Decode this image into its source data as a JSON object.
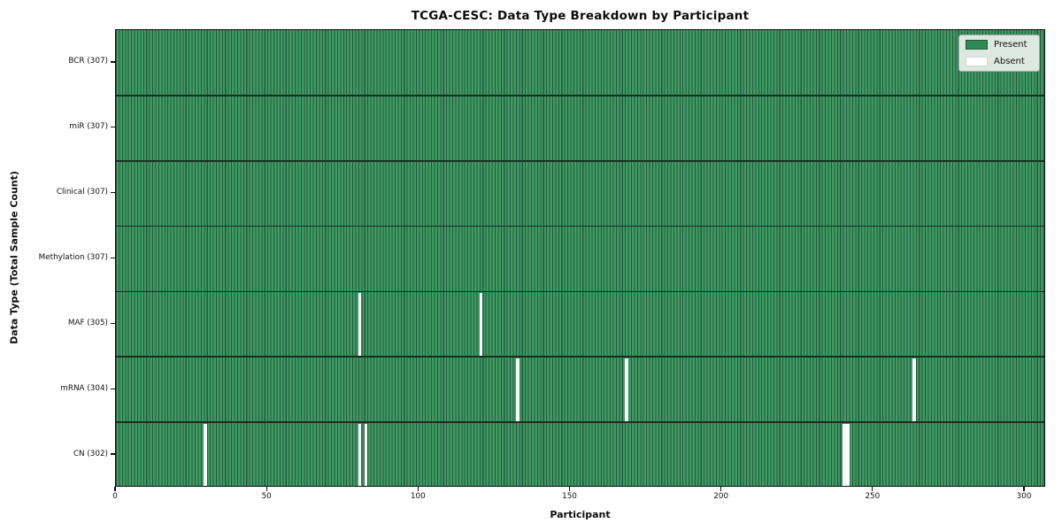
{
  "chart_data": {
    "type": "heatmap",
    "title": "TCGA-CESC: Data Type Breakdown by Participant",
    "xlabel": "Participant",
    "ylabel": "Data Type (Total Sample Count)",
    "x_ticks": [
      0,
      50,
      100,
      150,
      200,
      250,
      300
    ],
    "xlim": [
      0,
      307
    ],
    "n_participants": 307,
    "grid": false,
    "legend_position": "upper right",
    "legend": [
      {
        "label": "Present",
        "color": "#2e8b57"
      },
      {
        "label": "Absent",
        "color": "#ffffff"
      }
    ],
    "rows": [
      {
        "name": "BCR",
        "label": "BCR (307)",
        "total": 307,
        "absent_participants": []
      },
      {
        "name": "miR",
        "label": "miR (307)",
        "total": 307,
        "absent_participants": []
      },
      {
        "name": "Clinical",
        "label": "Clinical (307)",
        "total": 307,
        "absent_participants": []
      },
      {
        "name": "Methylation",
        "label": "Methylation (307)",
        "total": 307,
        "absent_participants": []
      },
      {
        "name": "MAF",
        "label": "MAF (305)",
        "total": 305,
        "absent_participants": [
          80,
          120
        ]
      },
      {
        "name": "mRNA",
        "label": "mRNA (304)",
        "total": 304,
        "absent_participants": [
          132,
          168,
          263
        ]
      },
      {
        "name": "CN",
        "label": "CN (302)",
        "total": 302,
        "absent_participants": [
          29,
          80,
          82,
          240,
          241
        ]
      }
    ],
    "colors": {
      "present_fill": "#3f9a64",
      "present_edge": "#24593a",
      "absent": "#fcfcfc",
      "row_separator": "#16301f",
      "axis": "#0d0d0d",
      "legend_bg": "#dde9e0",
      "legend_border": "#a9a9a9",
      "text": "#111111"
    }
  }
}
